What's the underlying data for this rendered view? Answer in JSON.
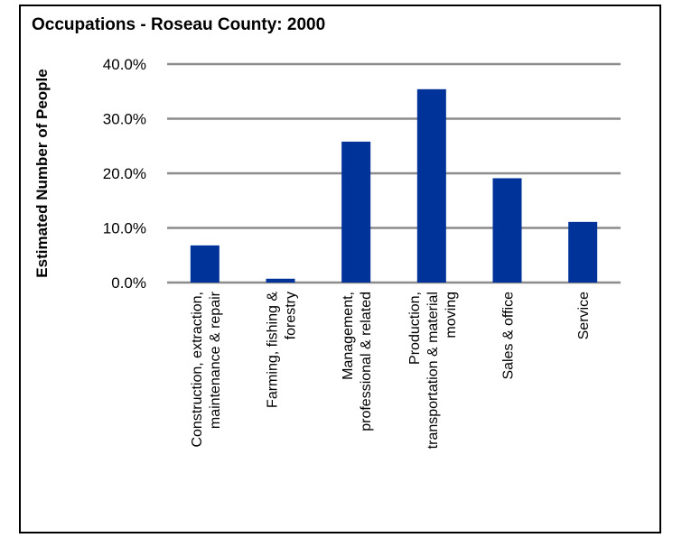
{
  "chart_data": {
    "type": "bar",
    "title": "Occupations - Roseau County: 2000",
    "xlabel": "",
    "ylabel": "Estimated Number of People",
    "ylim": [
      0,
      40
    ],
    "yticks": [
      "0.0%",
      "10.0%",
      "20.0%",
      "30.0%",
      "40.0%"
    ],
    "grid": true,
    "legend": "none",
    "bar_color": "#003399",
    "categories": [
      [
        "Construction, extraction,",
        "maintenance & repair"
      ],
      [
        "Farming, fishing &",
        "forestry"
      ],
      [
        "Management,",
        "professional & related"
      ],
      [
        "Production,",
        "transportation & material",
        "moving"
      ],
      [
        "Sales & office"
      ],
      [
        "Service"
      ]
    ],
    "values": [
      6.8,
      0.7,
      25.8,
      35.4,
      19.1,
      11.1
    ]
  }
}
